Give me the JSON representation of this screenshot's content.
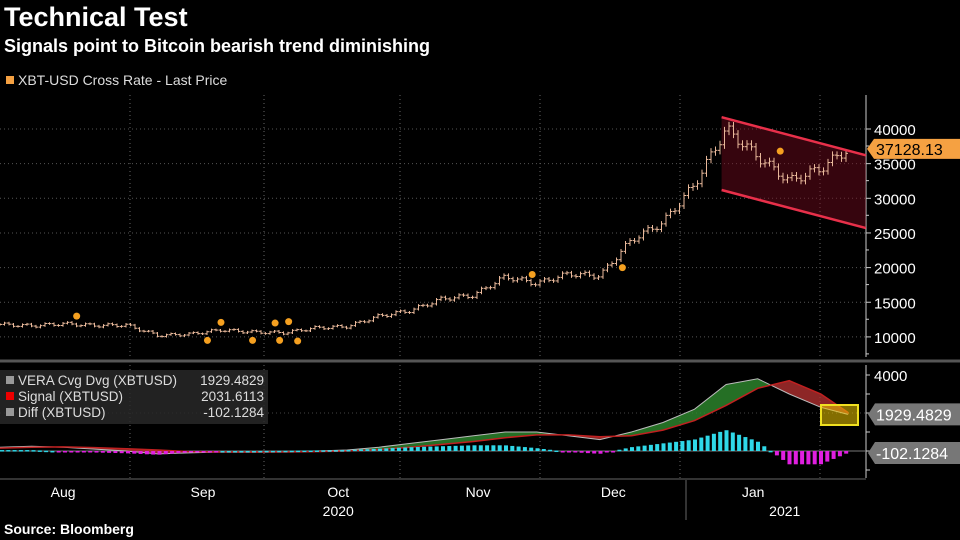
{
  "title": "Technical Test",
  "subtitle": "Signals point to Bitcoin bearish trend diminishing",
  "source": "Source: Bloomberg",
  "colors": {
    "price": "#f5a142",
    "channel": "#e8304a",
    "vera_up": "#2e8b2e",
    "vera_down": "#b03030",
    "hist_pos": "#2fd8e8",
    "hist_neg": "#e020e0",
    "highlight": "#f0e020"
  },
  "chart_data": [
    {
      "type": "line",
      "legend": "XBT-USD Cross Rate - Last Price",
      "last_value_label": "37128.13",
      "x": [
        "2020-08-01",
        "2020-08-08",
        "2020-08-15",
        "2020-08-22",
        "2020-08-29",
        "2020-09-05",
        "2020-09-12",
        "2020-09-19",
        "2020-09-26",
        "2020-10-03",
        "2020-10-10",
        "2020-10-17",
        "2020-10-24",
        "2020-10-31",
        "2020-11-07",
        "2020-11-14",
        "2020-11-21",
        "2020-11-28",
        "2020-12-05",
        "2020-12-12",
        "2020-12-19",
        "2020-12-26",
        "2021-01-02",
        "2021-01-09",
        "2021-01-16",
        "2021-01-23",
        "2021-01-30",
        "2021-02-05"
      ],
      "values": [
        11800,
        11600,
        11900,
        11650,
        11700,
        10200,
        10400,
        11000,
        10700,
        10600,
        11300,
        11500,
        13000,
        13800,
        15500,
        16000,
        18700,
        17700,
        19100,
        18800,
        24000,
        26500,
        32000,
        40000,
        36000,
        32500,
        34300,
        37128.13
      ],
      "signal_dots": [
        {
          "x": "2020-08-18",
          "y": 13000
        },
        {
          "x": "2020-09-16",
          "y": 9500
        },
        {
          "x": "2020-09-19",
          "y": 12100
        },
        {
          "x": "2020-09-26",
          "y": 9500
        },
        {
          "x": "2020-10-01",
          "y": 12000
        },
        {
          "x": "2020-10-02",
          "y": 9500
        },
        {
          "x": "2020-10-04",
          "y": 12200
        },
        {
          "x": "2020-10-06",
          "y": 9400
        },
        {
          "x": "2020-11-27",
          "y": 19000
        },
        {
          "x": "2020-12-17",
          "y": 20000
        },
        {
          "x": "2021-01-21",
          "y": 36800
        }
      ],
      "channel": {
        "upper": [
          [
            "2021-01-08",
            41700
          ],
          [
            "2021-02-09",
            36200
          ]
        ],
        "lower": [
          [
            "2021-01-08",
            31200
          ],
          [
            "2021-02-09",
            25700
          ]
        ]
      },
      "yticks": [
        10000,
        15000,
        20000,
        25000,
        30000,
        35000,
        40000
      ],
      "ylim": [
        5500,
        43500
      ]
    },
    {
      "type": "area",
      "series": [
        {
          "name": "VERA Cvg Dvg (XBTUSD)",
          "last": "1929.4829",
          "values": [
            200,
            250,
            200,
            100,
            0,
            -150,
            -100,
            -50,
            -60,
            -40,
            0,
            50,
            200,
            400,
            600,
            800,
            1000,
            1000,
            800,
            600,
            1000,
            1500,
            2200,
            3500,
            3800,
            3000,
            2300,
            1929.4829
          ]
        },
        {
          "name": "Signal (XBTUSD)",
          "last": "2031.6113",
          "values": [
            150,
            200,
            220,
            180,
            120,
            50,
            -30,
            -50,
            -60,
            -50,
            -30,
            0,
            80,
            200,
            350,
            500,
            700,
            850,
            850,
            750,
            800,
            1100,
            1600,
            2400,
            3300,
            3700,
            3000,
            2031.6113
          ]
        },
        {
          "name": "Diff (XBTUSD)",
          "last": "-102.1284",
          "values": [
            50,
            50,
            -20,
            -80,
            -120,
            -200,
            -70,
            0,
            0,
            10,
            30,
            50,
            120,
            200,
            250,
            300,
            300,
            150,
            -50,
            -150,
            200,
            400,
            600,
            1100,
            500,
            -700,
            -700,
            -102.1284
          ]
        }
      ],
      "yticks": [
        4000
      ],
      "ylim": [
        -1400,
        4400
      ]
    }
  ],
  "x_axis": {
    "months": [
      {
        "label": "Aug",
        "date": "2020-08-15"
      },
      {
        "label": "Sep",
        "date": "2020-09-15"
      },
      {
        "label": "Oct",
        "date": "2020-10-15"
      },
      {
        "label": "Nov",
        "date": "2020-11-15"
      },
      {
        "label": "Dec",
        "date": "2020-12-15"
      },
      {
        "label": "Jan",
        "date": "2021-01-15"
      }
    ],
    "years": [
      {
        "label": "2020",
        "date": "2020-10-15"
      },
      {
        "label": "2021",
        "date": "2021-01-22"
      }
    ]
  }
}
